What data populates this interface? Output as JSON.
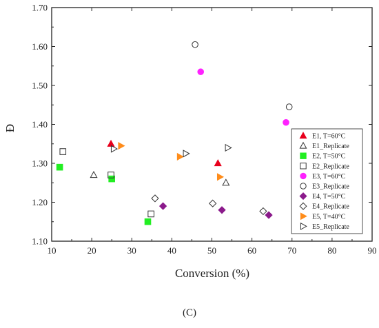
{
  "chart_data": {
    "type": "scatter",
    "xlabel": "Conversion (%)",
    "ylabel": "Đ",
    "xlim": [
      10,
      90
    ],
    "ylim": [
      1.1,
      1.7
    ],
    "x_ticks": [
      "10",
      "20",
      "30",
      "40",
      "50",
      "60",
      "70",
      "80",
      "90"
    ],
    "y_ticks": [
      "1.10",
      "1.20",
      "1.30",
      "1.40",
      "1.50",
      "1.60",
      "1.70"
    ],
    "legend_position": "right",
    "grid": false,
    "series": [
      {
        "name": "E1, T=60°C",
        "marker": "triangle-up",
        "filled": true,
        "color": "#e8001c",
        "points": [
          [
            24.8,
            1.35
          ],
          [
            51.5,
            1.3
          ]
        ]
      },
      {
        "name": "E1_Replicate",
        "marker": "triangle-up",
        "filled": false,
        "color": "#333333",
        "points": [
          [
            20.5,
            1.27
          ],
          [
            53.5,
            1.25
          ]
        ]
      },
      {
        "name": "E2, T=50°C",
        "marker": "square",
        "filled": true,
        "color": "#22ee22",
        "points": [
          [
            12.0,
            1.29
          ],
          [
            25.0,
            1.26
          ],
          [
            34.0,
            1.15
          ]
        ]
      },
      {
        "name": "E2_Replicate",
        "marker": "square",
        "filled": false,
        "color": "#333333",
        "points": [
          [
            12.8,
            1.33
          ],
          [
            24.8,
            1.27
          ],
          [
            34.8,
            1.17
          ]
        ]
      },
      {
        "name": "E3, T=60°C",
        "marker": "circle",
        "filled": true,
        "color": "#ff22ff",
        "points": [
          [
            47.2,
            1.535
          ],
          [
            68.5,
            1.405
          ]
        ]
      },
      {
        "name": "E3_Replicate",
        "marker": "circle",
        "filled": false,
        "color": "#333333",
        "points": [
          [
            45.8,
            1.605
          ],
          [
            69.3,
            1.445
          ]
        ]
      },
      {
        "name": "E4, T=50°C",
        "marker": "diamond",
        "filled": true,
        "color": "#8b1a8b",
        "points": [
          [
            37.8,
            1.19
          ],
          [
            52.5,
            1.18
          ],
          [
            64.2,
            1.167
          ]
        ]
      },
      {
        "name": "E4_Replicate",
        "marker": "diamond",
        "filled": false,
        "color": "#333333",
        "points": [
          [
            35.8,
            1.21
          ],
          [
            50.2,
            1.197
          ],
          [
            62.8,
            1.177
          ]
        ]
      },
      {
        "name": "E5, T=40°C",
        "marker": "triangle-right",
        "filled": true,
        "color": "#ff8c1a",
        "points": [
          [
            27.3,
            1.345
          ],
          [
            42.0,
            1.317
          ],
          [
            52.0,
            1.265
          ]
        ]
      },
      {
        "name": "E5_Replicate",
        "marker": "triangle-right",
        "filled": false,
        "color": "#333333",
        "points": [
          [
            25.5,
            1.337
          ],
          [
            43.5,
            1.325
          ],
          [
            54.0,
            1.34
          ]
        ]
      }
    ]
  },
  "panel_label": "(C)"
}
